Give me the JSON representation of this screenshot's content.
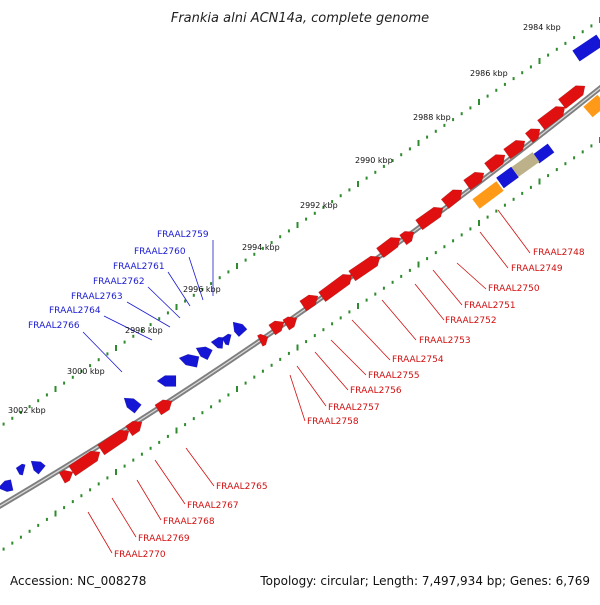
{
  "title": "Frankia alni ACN14a, complete genome",
  "footer": {
    "accession": "Accession: NC_008278",
    "summary": "Topology: circular; Length: 7,497,934 bp; Genes: 6,769"
  },
  "colors": {
    "forward_gene": "#e01010",
    "reverse_gene": "#1515d5",
    "rna_gene": "#ff9a18",
    "pseudo_gene": "#bdb189",
    "backbone": "#7f7f7f",
    "tick": "#2e8b2e",
    "top_label": "#1a1ad0",
    "bottom_label": "#d01010"
  },
  "scale_ticks": [
    "2984 kbp",
    "2986 kbp",
    "2988 kbp",
    "2990 kbp",
    "2992 kbp",
    "2994 kbp",
    "2996 kbp",
    "2998 kbp",
    "3000 kbp",
    "3002 kbp"
  ],
  "top_gene_labels": [
    "FRAAL2759",
    "FRAAL2760",
    "FRAAL2761",
    "FRAAL2762",
    "FRAAL2763",
    "FRAAL2764",
    "FRAAL2766"
  ],
  "bottom_gene_labels": [
    "FRAAL2748",
    "FRAAL2749",
    "FRAAL2750",
    "FRAAL2751",
    "FRAAL2752",
    "FRAAL2753",
    "FRAAL2754",
    "FRAAL2755",
    "FRAAL2756",
    "FRAAL2757",
    "FRAAL2758",
    "FRAAL2765",
    "FRAAL2767",
    "FRAAL2768",
    "FRAAL2769",
    "FRAAL2770"
  ]
}
